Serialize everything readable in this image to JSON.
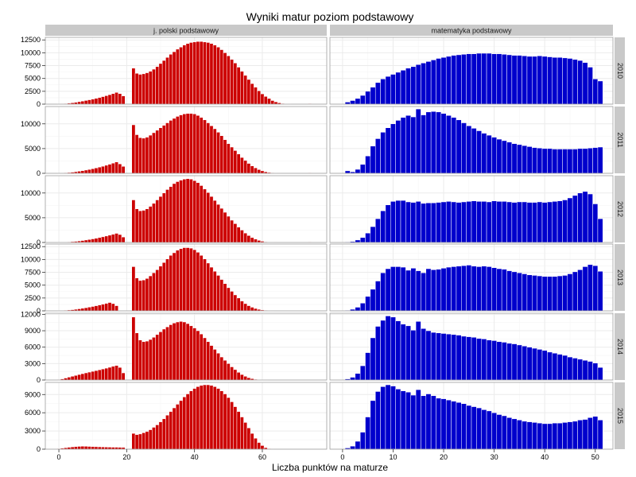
{
  "chart_data": {
    "type": "bar",
    "title": "Wyniki matur poziom podstawowy",
    "xlabel": "Liczba punktów na maturze",
    "ylabel": "",
    "x_ticks": [
      0,
      20,
      40,
      60
    ],
    "x_ticks_right": [
      0,
      10,
      20,
      30,
      40,
      50
    ],
    "panels": [
      {
        "column": "j. polski podstawowy",
        "color": "#CC0000",
        "xlim": [
          -4,
          79
        ],
        "series": [
          {
            "row": "2010",
            "x_start": 0,
            "values": [
              50,
              80,
              120,
              180,
              260,
              360,
              470,
              590,
              710,
              840,
              980,
              1130,
              1290,
              1460,
              1640,
              1840,
              2050,
              2280,
              2050,
              1600,
              0,
              0,
              7000,
              6000,
              5800,
              5900,
              6100,
              6400,
              6800,
              7300,
              7900,
              8500,
              9100,
              9700,
              10200,
              10700,
              11100,
              11500,
              11800,
              12000,
              12100,
              12200,
              12200,
              12100,
              12000,
              11800,
              11500,
              11100,
              10600,
              10000,
              9400,
              8700,
              8000,
              7200,
              6400,
              5600,
              4800,
              4000,
              3300,
              2600,
              2000,
              1500,
              1100,
              700,
              450,
              250,
              130,
              60,
              30,
              0,
              0,
              0,
              0,
              0,
              100
            ]
          },
          {
            "row": "2011",
            "x_start": 0,
            "values": [
              40,
              70,
              110,
              160,
              230,
              320,
              420,
              530,
              650,
              780,
              920,
              1080,
              1250,
              1420,
              1620,
              1830,
              2050,
              2280,
              1900,
              1400,
              0,
              0,
              9800,
              7800,
              7200,
              7100,
              7300,
              7700,
              8200,
              8700,
              9200,
              9700,
              10200,
              10700,
              11100,
              11500,
              11800,
              12000,
              12100,
              12100,
              12000,
              11700,
              11300,
              10800,
              10200,
              9600,
              9000,
              8300,
              7600,
              6800,
              6000,
              5300,
              4600,
              3900,
              3200,
              2600,
              2000,
              1500,
              1100,
              750,
              500,
              300,
              170,
              90,
              40,
              20,
              0,
              0,
              0,
              0,
              0,
              0,
              0,
              0,
              90
            ]
          },
          {
            "row": "2012",
            "x_start": 0,
            "values": [
              30,
              50,
              80,
              120,
              170,
              230,
              300,
              390,
              490,
              600,
              720,
              850,
              990,
              1140,
              1300,
              1470,
              1650,
              1840,
              1600,
              1100,
              0,
              0,
              8600,
              6800,
              6400,
              6500,
              6800,
              7300,
              7900,
              8600,
              9300,
              10000,
              10700,
              11300,
              11900,
              12300,
              12600,
              12800,
              12900,
              12800,
              12500,
              12100,
              11500,
              10800,
              10100,
              9300,
              8500,
              7700,
              6900,
              6100,
              5300,
              4500,
              3800,
              3100,
              2500,
              1900,
              1400,
              1000,
              680,
              420,
              250,
              130,
              60,
              30,
              10,
              0,
              0,
              0,
              0,
              0,
              0,
              0,
              0,
              0,
              90
            ]
          },
          {
            "row": "2013",
            "x_start": 0,
            "values": [
              40,
              70,
              110,
              160,
              220,
              300,
              390,
              490,
              600,
              720,
              850,
              990,
              1140,
              1290,
              1450,
              1620,
              1400,
              1000,
              0,
              0,
              0,
              0,
              8600,
              6400,
              5900,
              6000,
              6300,
              6800,
              7400,
              8000,
              8700,
              9400,
              10100,
              10800,
              11300,
              11800,
              12100,
              12300,
              12300,
              12200,
              11900,
              11400,
              10800,
              10100,
              9300,
              8500,
              7700,
              6900,
              6100,
              5300,
              4500,
              3800,
              3100,
              2500,
              1900,
              1400,
              1000,
              700,
              460,
              290,
              170,
              90,
              40,
              20,
              0,
              0,
              0,
              0,
              0,
              0,
              0,
              0,
              0,
              0
            ]
          },
          {
            "row": "2014",
            "x_start": 0,
            "values": [
              80,
              200,
              360,
              520,
              680,
              840,
              1000,
              1150,
              1300,
              1440,
              1580,
              1720,
              1860,
              2010,
              2160,
              2320,
              2500,
              2650,
              2300,
              1300,
              0,
              0,
              11500,
              8600,
              7300,
              7000,
              7100,
              7400,
              7800,
              8300,
              8800,
              9300,
              9700,
              10100,
              10400,
              10600,
              10700,
              10600,
              10300,
              9900,
              9500,
              9000,
              8400,
              7700,
              7000,
              6300,
              5600,
              4900,
              4200,
              3600,
              3000,
              2400,
              1900,
              1400,
              1000,
              680,
              420,
              250,
              130,
              60,
              30,
              10,
              0,
              0,
              0,
              0,
              0,
              0,
              0,
              0,
              0,
              0
            ]
          },
          {
            "row": "2015",
            "x_start": 0,
            "values": [
              80,
              160,
              240,
              310,
              370,
              420,
              460,
              480,
              470,
              450,
              420,
              400,
              380,
              360,
              340,
              330,
              320,
              320,
              300,
              280,
              0,
              0,
              2600,
              2400,
              2500,
              2700,
              2900,
              3200,
              3600,
              4000,
              4500,
              5000,
              5600,
              6200,
              6800,
              7400,
              8000,
              8600,
              9100,
              9600,
              10000,
              10300,
              10500,
              10600,
              10600,
              10500,
              10300,
              10000,
              9600,
              9100,
              8500,
              7800,
              7000,
              6200,
              5300,
              4400,
              3500,
              2600,
              1800,
              1100,
              600,
              250,
              80,
              20,
              0,
              0,
              0,
              0,
              0,
              0,
              0,
              0,
              0,
              0
            ]
          }
        ]
      },
      {
        "column": "matematyka podstawowy",
        "color": "#0000CC",
        "xlim": [
          -2.5,
          53.5
        ],
        "series": [
          {
            "row": "2010",
            "x_start": 0,
            "values": [
              50,
              400,
              700,
              1100,
              1700,
              2500,
              3300,
              4200,
              4900,
              5400,
              5800,
              6200,
              6600,
              7000,
              7300,
              7700,
              8000,
              8300,
              8600,
              8900,
              9100,
              9300,
              9500,
              9600,
              9700,
              9800,
              9800,
              9900,
              9900,
              9900,
              9800,
              9800,
              9700,
              9600,
              9500,
              9500,
              9400,
              9300,
              9300,
              9400,
              9300,
              9200,
              9100,
              9100,
              9000,
              8900,
              8700,
              8500,
              8100,
              7200,
              4900,
              4500
            ]
          },
          {
            "row": "2011",
            "x_start": 0,
            "values": [
              0,
              500,
              300,
              800,
              1800,
              3500,
              5500,
              7000,
              8300,
              9200,
              10000,
              10700,
              11300,
              11700,
              11400,
              13000,
              11800,
              12400,
              12500,
              12400,
              12100,
              11700,
              11300,
              10800,
              10200,
              9600,
              9100,
              8600,
              8100,
              7700,
              7300,
              6900,
              6600,
              6300,
              6000,
              5800,
              5600,
              5400,
              5200,
              5100,
              5000,
              5000,
              4900,
              4900,
              4900,
              4900,
              4900,
              5000,
              5000,
              5100,
              5200,
              5300
            ]
          },
          {
            "row": "2012",
            "x_start": 0,
            "values": [
              0,
              100,
              200,
              500,
              1000,
              1900,
              3200,
              4800,
              6400,
              7600,
              8300,
              8500,
              8500,
              8200,
              8100,
              8300,
              7900,
              8000,
              8000,
              8100,
              8200,
              8300,
              8200,
              8100,
              8200,
              8300,
              8400,
              8300,
              8300,
              8200,
              8400,
              8300,
              8300,
              8200,
              8100,
              8200,
              8200,
              8100,
              8100,
              8200,
              8100,
              8200,
              8300,
              8400,
              8600,
              9000,
              9500,
              10000,
              10300,
              9800,
              7800,
              4800
            ]
          },
          {
            "row": "2013",
            "x_start": 0,
            "values": [
              0,
              100,
              300,
              700,
              1500,
              2800,
              4200,
              5800,
              7400,
              8200,
              8600,
              8600,
              8500,
              7900,
              8300,
              7800,
              7400,
              8200,
              8000,
              8100,
              8300,
              8500,
              8600,
              8700,
              8800,
              8900,
              8700,
              8600,
              8700,
              8600,
              8400,
              8200,
              8100,
              7800,
              7600,
              7400,
              7200,
              7000,
              6900,
              6800,
              6700,
              6700,
              6700,
              6800,
              6900,
              7200,
              7600,
              8000,
              8600,
              9000,
              8800,
              7700
            ]
          },
          {
            "row": "2014",
            "x_start": 0,
            "values": [
              0,
              200,
              500,
              1200,
              2600,
              5000,
              7700,
              9800,
              10900,
              11700,
              11500,
              10800,
              10200,
              9900,
              9100,
              10700,
              9400,
              9000,
              8700,
              8600,
              8500,
              8400,
              8300,
              8200,
              8000,
              7900,
              7800,
              7600,
              7500,
              7300,
              7200,
              7000,
              6900,
              6700,
              6600,
              6400,
              6200,
              6000,
              5800,
              5600,
              5400,
              5100,
              4900,
              4700,
              4500,
              4200,
              4000,
              3800,
              3600,
              3400,
              3100,
              2300
            ]
          },
          {
            "row": "2015",
            "x_start": 0,
            "values": [
              0,
              200,
              500,
              1300,
              2800,
              5300,
              8000,
              9500,
              10300,
              10600,
              10400,
              9900,
              9600,
              9400,
              8900,
              9800,
              8800,
              9100,
              8800,
              8400,
              8300,
              8100,
              7900,
              7700,
              7500,
              7200,
              7000,
              6800,
              6500,
              6300,
              6000,
              5700,
              5500,
              5200,
              5000,
              4800,
              4600,
              4500,
              4400,
              4300,
              4200,
              4200,
              4300,
              4300,
              4400,
              4500,
              4600,
              4800,
              4900,
              5200,
              5400,
              4800
            ]
          }
        ]
      }
    ],
    "rows": [
      {
        "label": "2010",
        "ylim": [
          0,
          13000
        ],
        "ticks": [
          0,
          2500,
          5000,
          7500,
          10000,
          12500
        ],
        "tick_labels": [
          "0",
          "2500",
          "5000",
          "7500",
          "10000",
          "12500"
        ]
      },
      {
        "label": "2011",
        "ylim": [
          0,
          13500
        ],
        "ticks": [
          0,
          5000,
          10000
        ],
        "tick_labels": [
          "0",
          "5000",
          "10000"
        ]
      },
      {
        "label": "2012",
        "ylim": [
          0,
          13500
        ],
        "ticks": [
          0,
          5000,
          10000
        ],
        "tick_labels": [
          "0",
          "5000",
          "10000"
        ]
      },
      {
        "label": "2013",
        "ylim": [
          0,
          13000
        ],
        "ticks": [
          0,
          2500,
          5000,
          7500,
          10000,
          12500
        ],
        "tick_labels": [
          "0",
          "2500",
          "5000",
          "7500",
          "10000",
          "12500"
        ]
      },
      {
        "label": "2014",
        "ylim": [
          0,
          12200
        ],
        "ticks": [
          0,
          3000,
          6000,
          9000,
          12000
        ],
        "tick_labels": [
          "0",
          "3000",
          "6000",
          "9000",
          "12000"
        ]
      },
      {
        "label": "2015",
        "ylim": [
          0,
          11000
        ],
        "ticks": [
          0,
          3000,
          6000,
          9000
        ],
        "tick_labels": [
          "0",
          "3000",
          "6000",
          "9000"
        ]
      }
    ],
    "grid": true,
    "legend": "none",
    "colors": {
      "strip_bg": "#C9C9C9",
      "panel_border": "#9E9E9E",
      "grid_major": "#EBEBEB",
      "grid_minor": "#F5F5F5"
    }
  }
}
